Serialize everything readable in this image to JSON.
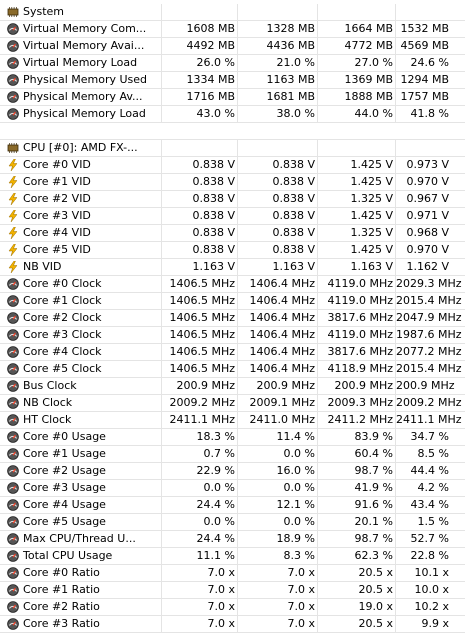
{
  "groups": [
    {
      "title": "System",
      "start_row": 0
    },
    {
      "title": "CPU [#0]: AMD FX-...",
      "start_row": 8
    }
  ],
  "rows": [
    {
      "type": "group",
      "icon": "system-chip-icon",
      "label": "System"
    },
    {
      "type": "item",
      "icon": "memory-gauge-icon",
      "label": "Virtual Memory Com...",
      "v1": "1608 MB",
      "v2": "1328 MB",
      "v3": "1664 MB",
      "v4": "1532 MB"
    },
    {
      "type": "item",
      "icon": "memory-gauge-icon",
      "label": "Virtual Memory Avai...",
      "v1": "4492 MB",
      "v2": "4436 MB",
      "v3": "4772 MB",
      "v4": "4569 MB"
    },
    {
      "type": "item",
      "icon": "memory-gauge-icon",
      "label": "Virtual Memory Load",
      "v1": "26.0 %",
      "v2": "21.0 %",
      "v3": "27.0 %",
      "v4": "24.6 %"
    },
    {
      "type": "item",
      "icon": "memory-gauge-icon",
      "label": "Physical Memory Used",
      "v1": "1334 MB",
      "v2": "1163 MB",
      "v3": "1369 MB",
      "v4": "1294 MB"
    },
    {
      "type": "item",
      "icon": "memory-gauge-icon",
      "label": "Physical Memory Av...",
      "v1": "1716 MB",
      "v2": "1681 MB",
      "v3": "1888 MB",
      "v4": "1757 MB"
    },
    {
      "type": "item",
      "icon": "memory-gauge-icon",
      "label": "Physical Memory Load",
      "v1": "43.0 %",
      "v2": "38.0 %",
      "v3": "44.0 %",
      "v4": "41.8 %"
    },
    {
      "type": "blank"
    },
    {
      "type": "group",
      "icon": "cpu-chip-icon",
      "label": "CPU [#0]: AMD FX-..."
    },
    {
      "type": "item",
      "icon": "voltage-bolt-icon",
      "label": "Core #0 VID",
      "v1": "0.838 V",
      "v2": "0.838 V",
      "v3": "1.425 V",
      "v4": "0.973 V"
    },
    {
      "type": "item",
      "icon": "voltage-bolt-icon",
      "label": "Core #1 VID",
      "v1": "0.838 V",
      "v2": "0.838 V",
      "v3": "1.425 V",
      "v4": "0.970 V"
    },
    {
      "type": "item",
      "icon": "voltage-bolt-icon",
      "label": "Core #2 VID",
      "v1": "0.838 V",
      "v2": "0.838 V",
      "v3": "1.325 V",
      "v4": "0.967 V"
    },
    {
      "type": "item",
      "icon": "voltage-bolt-icon",
      "label": "Core #3 VID",
      "v1": "0.838 V",
      "v2": "0.838 V",
      "v3": "1.425 V",
      "v4": "0.971 V"
    },
    {
      "type": "item",
      "icon": "voltage-bolt-icon",
      "label": "Core #4 VID",
      "v1": "0.838 V",
      "v2": "0.838 V",
      "v3": "1.325 V",
      "v4": "0.968 V"
    },
    {
      "type": "item",
      "icon": "voltage-bolt-icon",
      "label": "Core #5 VID",
      "v1": "0.838 V",
      "v2": "0.838 V",
      "v3": "1.425 V",
      "v4": "0.970 V"
    },
    {
      "type": "item",
      "icon": "voltage-bolt-icon",
      "label": "NB VID",
      "v1": "1.163 V",
      "v2": "1.163 V",
      "v3": "1.163 V",
      "v4": "1.162 V"
    },
    {
      "type": "item",
      "icon": "clock-gauge-icon",
      "label": "Core #0 Clock",
      "v1": "1406.5 MHz",
      "v2": "1406.4 MHz",
      "v3": "4119.0 MHz",
      "v4": "2029.3 MHz"
    },
    {
      "type": "item",
      "icon": "clock-gauge-icon",
      "label": "Core #1 Clock",
      "v1": "1406.5 MHz",
      "v2": "1406.4 MHz",
      "v3": "4119.0 MHz",
      "v4": "2015.4 MHz"
    },
    {
      "type": "item",
      "icon": "clock-gauge-icon",
      "label": "Core #2 Clock",
      "v1": "1406.5 MHz",
      "v2": "1406.4 MHz",
      "v3": "3817.6 MHz",
      "v4": "2047.9 MHz"
    },
    {
      "type": "item",
      "icon": "clock-gauge-icon",
      "label": "Core #3 Clock",
      "v1": "1406.5 MHz",
      "v2": "1406.4 MHz",
      "v3": "4119.0 MHz",
      "v4": "1987.6 MHz"
    },
    {
      "type": "item",
      "icon": "clock-gauge-icon",
      "label": "Core #4 Clock",
      "v1": "1406.5 MHz",
      "v2": "1406.4 MHz",
      "v3": "3817.6 MHz",
      "v4": "2077.2 MHz"
    },
    {
      "type": "item",
      "icon": "clock-gauge-icon",
      "label": "Core #5 Clock",
      "v1": "1406.5 MHz",
      "v2": "1406.4 MHz",
      "v3": "4118.9 MHz",
      "v4": "2015.4 MHz"
    },
    {
      "type": "item",
      "icon": "clock-gauge-icon",
      "label": "Bus Clock",
      "v1": "200.9 MHz",
      "v2": "200.9 MHz",
      "v3": "200.9 MHz",
      "v4": "200.9 MHz"
    },
    {
      "type": "item",
      "icon": "clock-gauge-icon",
      "label": "NB Clock",
      "v1": "2009.2 MHz",
      "v2": "2009.1 MHz",
      "v3": "2009.3 MHz",
      "v4": "2009.2 MHz"
    },
    {
      "type": "item",
      "icon": "clock-gauge-icon",
      "label": "HT Clock",
      "v1": "2411.1 MHz",
      "v2": "2411.0 MHz",
      "v3": "2411.2 MHz",
      "v4": "2411.1 MHz"
    },
    {
      "type": "item",
      "icon": "usage-gauge-icon",
      "label": "Core #0 Usage",
      "v1": "18.3 %",
      "v2": "11.4 %",
      "v3": "83.9 %",
      "v4": "34.7 %"
    },
    {
      "type": "item",
      "icon": "usage-gauge-icon",
      "label": "Core #1 Usage",
      "v1": "0.7 %",
      "v2": "0.0 %",
      "v3": "60.4 %",
      "v4": "8.5 %"
    },
    {
      "type": "item",
      "icon": "usage-gauge-icon",
      "label": "Core #2 Usage",
      "v1": "22.9 %",
      "v2": "16.0 %",
      "v3": "98.7 %",
      "v4": "44.4 %"
    },
    {
      "type": "item",
      "icon": "usage-gauge-icon",
      "label": "Core #3 Usage",
      "v1": "0.0 %",
      "v2": "0.0 %",
      "v3": "41.9 %",
      "v4": "4.2 %"
    },
    {
      "type": "item",
      "icon": "usage-gauge-icon",
      "label": "Core #4 Usage",
      "v1": "24.4 %",
      "v2": "12.1 %",
      "v3": "91.6 %",
      "v4": "43.4 %"
    },
    {
      "type": "item",
      "icon": "usage-gauge-icon",
      "label": "Core #5 Usage",
      "v1": "0.0 %",
      "v2": "0.0 %",
      "v3": "20.1 %",
      "v4": "1.5 %"
    },
    {
      "type": "item",
      "icon": "usage-gauge-icon",
      "label": "Max CPU/Thread U...",
      "v1": "24.4 %",
      "v2": "18.9 %",
      "v3": "98.7 %",
      "v4": "52.7 %"
    },
    {
      "type": "item",
      "icon": "usage-gauge-icon",
      "label": "Total CPU Usage",
      "v1": "11.1 %",
      "v2": "8.3 %",
      "v3": "62.3 %",
      "v4": "22.8 %"
    },
    {
      "type": "item",
      "icon": "ratio-gauge-icon",
      "label": "Core #0 Ratio",
      "v1": "7.0 x",
      "v2": "7.0 x",
      "v3": "20.5 x",
      "v4": "10.1 x"
    },
    {
      "type": "item",
      "icon": "ratio-gauge-icon",
      "label": "Core #1 Ratio",
      "v1": "7.0 x",
      "v2": "7.0 x",
      "v3": "20.5 x",
      "v4": "10.0 x"
    },
    {
      "type": "item",
      "icon": "ratio-gauge-icon",
      "label": "Core #2 Ratio",
      "v1": "7.0 x",
      "v2": "7.0 x",
      "v3": "19.0 x",
      "v4": "10.2 x"
    },
    {
      "type": "item",
      "icon": "ratio-gauge-icon",
      "label": "Core #3 Ratio",
      "v1": "7.0 x",
      "v2": "7.0 x",
      "v3": "20.5 x",
      "v4": "9.9 x"
    }
  ],
  "colors": {
    "grid_line": "#e4e4e4",
    "gauge_face": "#555555",
    "bolt": "#f2b200",
    "chip": "#8a6a2a"
  }
}
